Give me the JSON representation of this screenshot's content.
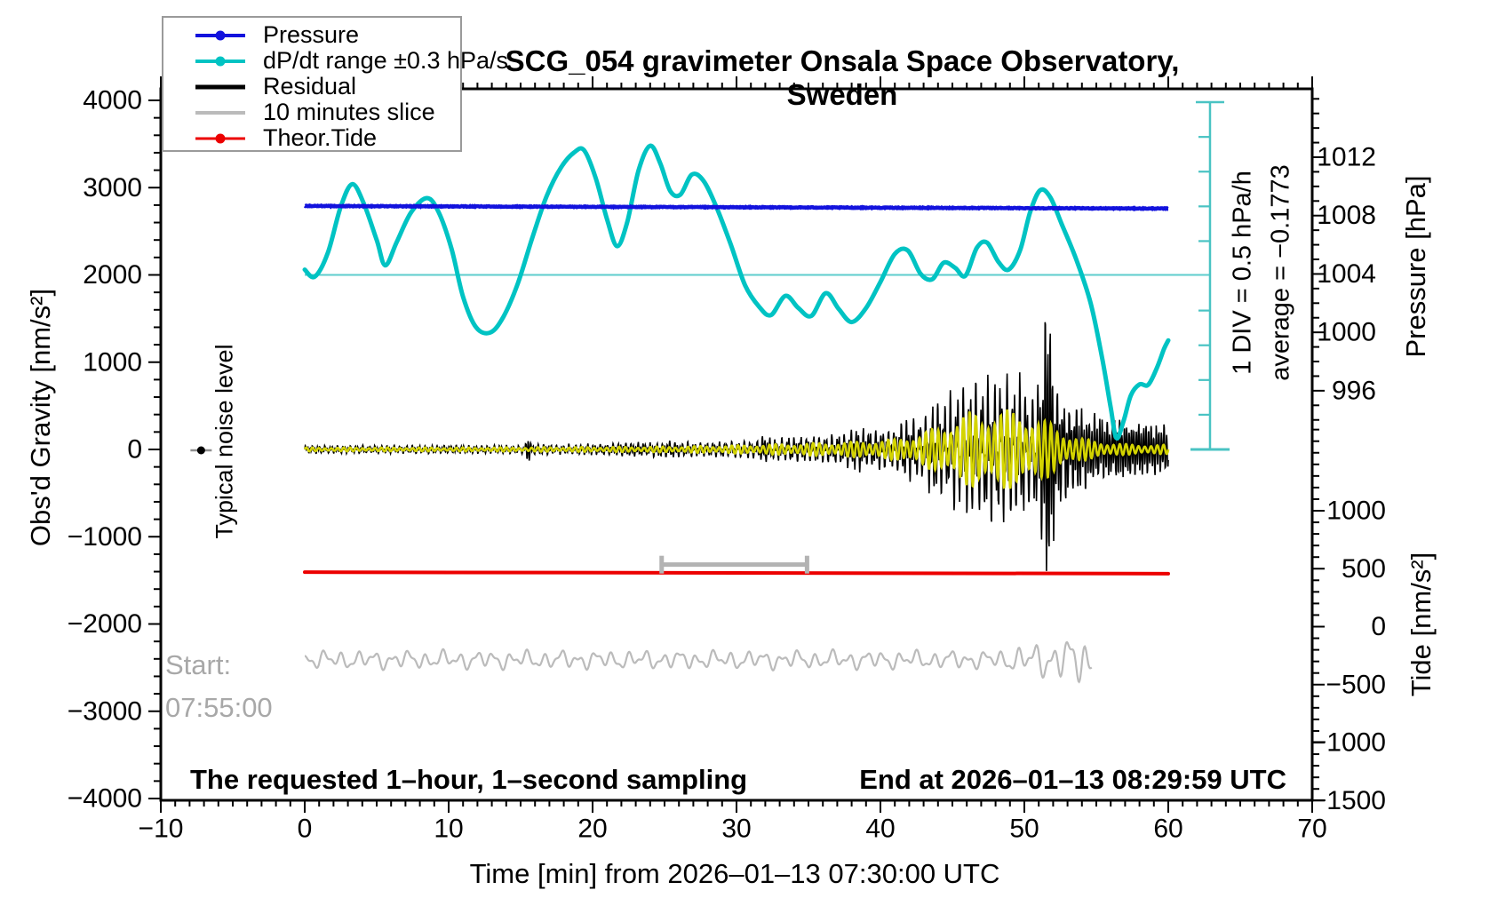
{
  "title": "SCG_054 gravimeter Onsala Space Observatory, Sweden",
  "legend": {
    "items": [
      {
        "label": "Pressure",
        "color": "#1212dd",
        "marker": "dot",
        "weight": 4
      },
      {
        "label": "dP/dt range ±0.3 hPa/s",
        "color": "#00c3c3",
        "marker": "dot",
        "weight": 4
      },
      {
        "label": "Residual",
        "color": "#000000",
        "marker": "line",
        "weight": 5
      },
      {
        "label": "10 minutes slice",
        "color": "#bbbbbb",
        "marker": "line",
        "weight": 4
      },
      {
        "label": "Theor.Tide",
        "color": "#ec0000",
        "marker": "dot",
        "weight": 3
      }
    ]
  },
  "annotations": {
    "noise_label": "Typical noise level",
    "start_label": "Start:",
    "start_time": "07:55:00",
    "sampling_note": "The requested 1–hour, 1–second sampling",
    "end_note": "End at 2026–01–13 08:29:59 UTC",
    "div_note_line1": "1 DIV = 0.5 hPa/h",
    "div_note_line2": "average = −0.1773"
  },
  "axes": {
    "x": {
      "title": "Time [min] from 2026–01–13 07:30:00 UTC",
      "min": -10,
      "max": 70,
      "major": 10,
      "minor": 1,
      "tick_values": [
        -10,
        0,
        10,
        20,
        30,
        40,
        50,
        60,
        70
      ],
      "tick_labels": [
        "−10",
        "0",
        "10",
        "20",
        "30",
        "40",
        "50",
        "60",
        "70"
      ]
    },
    "gravity": {
      "title": "Obs'd Gravity [nm/s²]",
      "min": -4000,
      "max": 4130,
      "major": 1000,
      "minor": 200,
      "tick_values": [
        4000,
        3000,
        2000,
        1000,
        0,
        -1000,
        -2000,
        -3000,
        -4000
      ],
      "tick_labels": [
        "4000",
        "3000",
        "2000",
        "1000",
        "0",
        "−1000",
        "−2000",
        "−3000",
        "−4000"
      ]
    },
    "pressure": {
      "title": "Pressure [hPa]",
      "major": 4,
      "minor": 1,
      "tick_values": [
        1012,
        1008,
        1004,
        1000,
        996
      ],
      "tick_labels": [
        "1012",
        "1008",
        "1004",
        "1000",
        "996"
      ]
    },
    "tide": {
      "title": "Tide [nm/s²]",
      "major": 500,
      "minor": 100,
      "tick_values": [
        1000,
        500,
        0,
        -500,
        -1000,
        -1500
      ],
      "tick_labels": [
        "1000",
        "500",
        "0",
        "−500",
        "−1000",
        "−1500"
      ]
    }
  },
  "chart_data": {
    "type": "line",
    "x_unit": "minutes",
    "x_range": [
      0,
      60
    ],
    "gridlines": false,
    "series": [
      {
        "id": "pressure",
        "label": "Pressure",
        "color": "#1212dd",
        "axis": "pressure_hpa",
        "style": "noisy-flat",
        "start": 1008.66,
        "end": 1008.48,
        "noise": 0.05
      },
      {
        "id": "dpdt",
        "label": "dP/dt range ±0.3 hPa/s",
        "color": "#00c3c3",
        "axis": "gravity_equivalent",
        "style": "smooth",
        "zero_reference": 2000,
        "hpa_per_hour_per_unit": 0.00125,
        "points": [
          [
            0,
            2060
          ],
          [
            0.7,
            1980
          ],
          [
            1.6,
            2250
          ],
          [
            2.5,
            2780
          ],
          [
            3.3,
            3040
          ],
          [
            4.1,
            2820
          ],
          [
            5,
            2400
          ],
          [
            5.6,
            2110
          ],
          [
            6.4,
            2380
          ],
          [
            7.4,
            2720
          ],
          [
            8.5,
            2880
          ],
          [
            9.3,
            2720
          ],
          [
            10.2,
            2300
          ],
          [
            11,
            1750
          ],
          [
            11.9,
            1400
          ],
          [
            12.9,
            1340
          ],
          [
            13.8,
            1520
          ],
          [
            14.8,
            1900
          ],
          [
            15.8,
            2420
          ],
          [
            16.8,
            2900
          ],
          [
            17.8,
            3230
          ],
          [
            18.7,
            3400
          ],
          [
            19.4,
            3430
          ],
          [
            20.2,
            3120
          ],
          [
            21,
            2640
          ],
          [
            21.7,
            2330
          ],
          [
            22.4,
            2600
          ],
          [
            23.2,
            3200
          ],
          [
            24,
            3480
          ],
          [
            24.7,
            3280
          ],
          [
            25.4,
            2960
          ],
          [
            26.1,
            2920
          ],
          [
            26.9,
            3150
          ],
          [
            27.7,
            3080
          ],
          [
            28.6,
            2780
          ],
          [
            29.6,
            2350
          ],
          [
            30.6,
            1880
          ],
          [
            31.6,
            1630
          ],
          [
            32.4,
            1540
          ],
          [
            33.4,
            1760
          ],
          [
            34.3,
            1620
          ],
          [
            35.2,
            1530
          ],
          [
            36.2,
            1790
          ],
          [
            37.1,
            1610
          ],
          [
            38,
            1460
          ],
          [
            39,
            1620
          ],
          [
            40,
            1920
          ],
          [
            41,
            2240
          ],
          [
            41.9,
            2280
          ],
          [
            42.8,
            2010
          ],
          [
            43.6,
            1950
          ],
          [
            44.4,
            2140
          ],
          [
            45.2,
            2080
          ],
          [
            45.9,
            1990
          ],
          [
            46.7,
            2310
          ],
          [
            47.4,
            2370
          ],
          [
            48.2,
            2150
          ],
          [
            48.9,
            2060
          ],
          [
            49.7,
            2280
          ],
          [
            50.4,
            2720
          ],
          [
            51.1,
            2970
          ],
          [
            51.8,
            2890
          ],
          [
            52.6,
            2580
          ],
          [
            53.6,
            2180
          ],
          [
            54.6,
            1680
          ],
          [
            55.4,
            1050
          ],
          [
            56,
            480
          ],
          [
            56.4,
            130
          ],
          [
            56.9,
            330
          ],
          [
            57.4,
            620
          ],
          [
            58,
            745
          ],
          [
            58.6,
            740
          ],
          [
            59.2,
            930
          ],
          [
            59.7,
            1150
          ],
          [
            60,
            1250
          ]
        ]
      },
      {
        "id": "residual",
        "label": "Residual",
        "color": "#000000",
        "axis": "gravity_nm_s2",
        "style": "seismic-oscillation",
        "cycles_per_min": 5.8,
        "peak_positive": 2150,
        "peak_negative": -1550,
        "envelope": [
          [
            0,
            32
          ],
          [
            15.3,
            32
          ],
          [
            15.55,
            165
          ],
          [
            15.8,
            45
          ],
          [
            17,
            38
          ],
          [
            19,
            42
          ],
          [
            21,
            48
          ],
          [
            22.5,
            70
          ],
          [
            24,
            58
          ],
          [
            25.5,
            80
          ],
          [
            26.5,
            60
          ],
          [
            28,
            55
          ],
          [
            30,
            62
          ],
          [
            31.5,
            75
          ],
          [
            31.9,
            150
          ],
          [
            32.4,
            85
          ],
          [
            33.5,
            100
          ],
          [
            34.5,
            115
          ],
          [
            35.5,
            105
          ],
          [
            36.5,
            120
          ],
          [
            37.5,
            135
          ],
          [
            38.4,
            210
          ],
          [
            39.2,
            150
          ],
          [
            40,
            165
          ],
          [
            41,
            185
          ],
          [
            41.9,
            260
          ],
          [
            42.6,
            230
          ],
          [
            43.3,
            300
          ],
          [
            43.9,
            430
          ],
          [
            44.4,
            310
          ],
          [
            45,
            480
          ],
          [
            45.6,
            380
          ],
          [
            46.2,
            560
          ],
          [
            46.8,
            420
          ],
          [
            47.4,
            560
          ],
          [
            48,
            460
          ],
          [
            48.6,
            570
          ],
          [
            49.2,
            480
          ],
          [
            49.8,
            560
          ],
          [
            50.4,
            430
          ],
          [
            50.9,
            520
          ],
          [
            51.3,
            900
          ],
          [
            51.55,
            2050
          ],
          [
            51.8,
            1400
          ],
          [
            52.1,
            700
          ],
          [
            52.6,
            520
          ],
          [
            53.4,
            450
          ],
          [
            54.2,
            400
          ],
          [
            55,
            360
          ],
          [
            56,
            330
          ],
          [
            57,
            300
          ],
          [
            58,
            290
          ],
          [
            59,
            270
          ],
          [
            60,
            260
          ]
        ]
      },
      {
        "id": "residual_smooth",
        "label": "",
        "in_legend": false,
        "color": "#d4d400",
        "axis": "gravity_nm_s2",
        "style": "oscillation",
        "cycles_per_min": 2.3,
        "envelope": [
          [
            0,
            22
          ],
          [
            12,
            22
          ],
          [
            16,
            26
          ],
          [
            20,
            28
          ],
          [
            24,
            32
          ],
          [
            28,
            40
          ],
          [
            31,
            52
          ],
          [
            33,
            62
          ],
          [
            35,
            72
          ],
          [
            37,
            80
          ],
          [
            39,
            95
          ],
          [
            41,
            120
          ],
          [
            42.5,
            170
          ],
          [
            43.5,
            230
          ],
          [
            44.5,
            290
          ],
          [
            45.5,
            390
          ],
          [
            46.3,
            440
          ],
          [
            47,
            410
          ],
          [
            47.8,
            440
          ],
          [
            48.6,
            465
          ],
          [
            49.4,
            440
          ],
          [
            50.2,
            400
          ],
          [
            51,
            360
          ],
          [
            51.8,
            310
          ],
          [
            52.3,
            250
          ],
          [
            53,
            180
          ],
          [
            54,
            130
          ],
          [
            55,
            100
          ],
          [
            56,
            75
          ],
          [
            57,
            62
          ],
          [
            58,
            58
          ],
          [
            59,
            55
          ],
          [
            60,
            52
          ]
        ]
      },
      {
        "id": "slice",
        "label": "10 minutes slice",
        "color": "#bbbbbb",
        "axis": "tide_nm_s2",
        "style": "wave",
        "base": -286,
        "amplitude": 85,
        "t_start": 0,
        "t_end": 54.7
      },
      {
        "id": "theor_tide",
        "label": "Theor.Tide",
        "color": "#ec0000",
        "axis": "tide_nm_s2",
        "style": "line",
        "start": 470,
        "end": 457
      }
    ],
    "reference_line": {
      "series": "dpdt",
      "gravity_value": 2000,
      "meaning": "dP/dt = 0",
      "x_end_min": 62.9
    },
    "scale_bar": {
      "x_min": 62.9,
      "divisions": 10,
      "div_value": "0.5 hPa/h",
      "gravity_top": 4030,
      "gravity_bottom": 0
    },
    "slice_window": {
      "t0": 24.8,
      "t1": 34.9,
      "tide_level": 535
    },
    "noise_marker": {
      "t": -7.2,
      "gravity_value": 0
    }
  },
  "colors": {
    "pressure": "#1212dd",
    "dpdt": "#00c3c3",
    "dpdt_reference": "#5ecccc",
    "residual": "#000000",
    "residual_smooth": "#d4d400",
    "slice": "#bbbbbb",
    "theor_tide": "#ec0000",
    "frame": "#000000",
    "start_text": "#a8a8a8",
    "bracket": "#b3b3b3",
    "noise_whisker": "#909090"
  }
}
